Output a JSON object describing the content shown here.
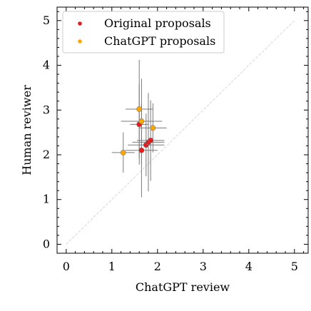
{
  "chart_data": {
    "type": "scatter",
    "xlabel": "ChatGPT review",
    "ylabel": "Human reviwer",
    "xlim": [
      -0.2,
      5.3
    ],
    "ylim": [
      -0.2,
      5.3
    ],
    "xticks": [
      0,
      1,
      2,
      3,
      4,
      5
    ],
    "yticks": [
      0,
      1,
      2,
      3,
      4,
      5
    ],
    "minor_tick_step": 0.2,
    "diagonal_reference_line": true,
    "legend_position": "top-left",
    "series": [
      {
        "name": "Original proposals",
        "color": "#e41a1c",
        "points": [
          {
            "x": 1.65,
            "y": 2.1,
            "xerr": 0.35,
            "yerr": 1.05
          },
          {
            "x": 1.75,
            "y": 2.22,
            "xerr": 0.4,
            "yerr": 0.7
          },
          {
            "x": 1.8,
            "y": 2.28,
            "xerr": 0.35,
            "yerr": 1.1
          },
          {
            "x": 1.85,
            "y": 2.32,
            "xerr": 0.3,
            "yerr": 0.9
          },
          {
            "x": 1.6,
            "y": 2.68,
            "xerr": 0.2,
            "yerr": 0.9
          }
        ]
      },
      {
        "name": "ChatGPT proposals",
        "color": "#ffa500",
        "points": [
          {
            "x": 1.25,
            "y": 2.05,
            "xerr": 0.25,
            "yerr": 0.45
          },
          {
            "x": 1.6,
            "y": 3.02,
            "xerr": 0.3,
            "yerr": 1.1
          },
          {
            "x": 1.65,
            "y": 2.75,
            "xerr": 0.45,
            "yerr": 0.95
          },
          {
            "x": 1.9,
            "y": 2.6,
            "xerr": 0.3,
            "yerr": 0.55
          }
        ]
      }
    ]
  }
}
